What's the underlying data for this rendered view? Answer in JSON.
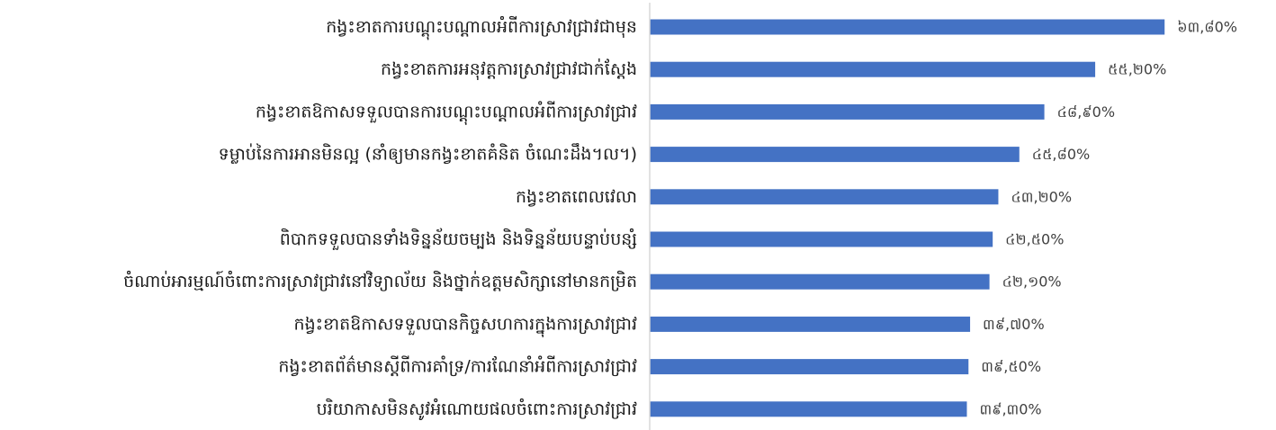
{
  "chart_data": {
    "type": "bar",
    "orientation": "horizontal",
    "categories": [
      "កង្វះខាតការបណ្តុះបណ្តាលអំពីការស្រាវជ្រាវជាមុន",
      "កង្វះខាតការអនុវត្តការស្រាវជ្រាវជាក់ស្តែង",
      "កង្វះខាតឱកាសទទួលបានការបណ្តុះបណ្តាលអំពីការស្រាវជ្រាវ",
      "ទម្លាប់នៃការអានមិនល្អ (នាំឲ្យមានកង្វះខាតគំនិត ចំណេះដឹង។ល។)",
      "កង្វះខាតពេលវេលា",
      "ពិបាកទទួលបានទាំងទិន្នន័យចម្បង និងទិន្នន័យបន្ទាប់បន្សំ",
      "ចំណាប់អារម្មណ៍ចំពោះការស្រាវជ្រាវនៅវិទ្យាល័យ និងថ្នាក់ឧត្តមសិក្សានៅមានកម្រិត",
      "កង្វះខាតឱកាសទទួលបានកិច្ចសហការក្នុងការស្រាវជ្រាវ",
      "កង្វះខាតព័ត៌មានស្តីពីការគាំទ្រ/ការណែនាំអំពីការស្រាវជ្រាវ",
      "បរិយាកាសមិនសូវអំណោយផលចំពោះការស្រាវជ្រាវ"
    ],
    "values": [
      63.8,
      55.2,
      48.9,
      45.8,
      43.2,
      42.5,
      42.1,
      39.7,
      39.5,
      39.3
    ],
    "value_labels": [
      "៦៣,៨0%",
      "៥៥,២0%",
      "៤៨,៩0%",
      "៤៥,៨0%",
      "៤៣,២0%",
      "៤២,៥0%",
      "៤២,១0%",
      "៣៩,៧0%",
      "៣៩,៥0%",
      "៣៩,៣0%"
    ],
    "unit": "%",
    "xlim": [
      0,
      64
    ],
    "grid": false,
    "legend": "none",
    "colors": {
      "bar": "#4472c4",
      "axis": "#d9d9d9",
      "category_text": "#1a1a1a",
      "value_text": "#404040"
    }
  }
}
